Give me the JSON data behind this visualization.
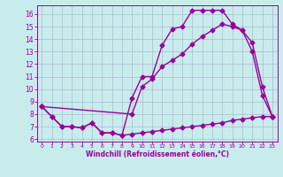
{
  "xlabel": "Windchill (Refroidissement éolien,°C)",
  "background_color": "#c8ecec",
  "line_color": "#990099",
  "grid_color": "#aaaacc",
  "xlim": [
    -0.5,
    23.5
  ],
  "ylim": [
    5.8,
    16.7
  ],
  "yticks": [
    6,
    7,
    8,
    9,
    10,
    11,
    12,
    13,
    14,
    15,
    16
  ],
  "xticks": [
    0,
    1,
    2,
    3,
    4,
    5,
    6,
    7,
    8,
    9,
    10,
    11,
    12,
    13,
    14,
    15,
    16,
    17,
    18,
    19,
    20,
    21,
    22,
    23
  ],
  "line1_x": [
    0,
    1,
    2,
    3,
    4,
    5,
    6,
    7,
    8,
    9,
    10,
    11,
    12,
    13,
    14,
    15,
    16,
    17,
    18,
    19,
    20,
    21,
    22,
    23
  ],
  "line1_y": [
    8.6,
    7.8,
    7.0,
    7.0,
    6.9,
    7.3,
    6.5,
    6.5,
    6.3,
    9.3,
    11.0,
    11.0,
    13.5,
    14.8,
    15.0,
    16.3,
    16.3,
    16.3,
    16.3,
    15.2,
    14.7,
    13.0,
    9.5,
    7.8
  ],
  "line2_x": [
    0,
    9,
    10,
    11,
    12,
    13,
    14,
    15,
    16,
    17,
    18,
    19,
    20,
    21,
    22,
    23
  ],
  "line2_y": [
    8.6,
    8.0,
    10.2,
    10.8,
    11.8,
    12.3,
    12.8,
    13.6,
    14.2,
    14.7,
    15.2,
    15.0,
    14.7,
    13.7,
    10.2,
    7.8
  ],
  "line3_x": [
    0,
    1,
    2,
    3,
    4,
    5,
    6,
    7,
    8,
    9,
    10,
    11,
    12,
    13,
    14,
    15,
    16,
    17,
    18,
    19,
    20,
    21,
    22,
    23
  ],
  "line3_y": [
    8.6,
    7.8,
    7.0,
    7.0,
    6.9,
    7.3,
    6.5,
    6.5,
    6.3,
    6.4,
    6.5,
    6.6,
    6.7,
    6.8,
    6.9,
    7.0,
    7.1,
    7.2,
    7.3,
    7.5,
    7.6,
    7.7,
    7.8,
    7.8
  ],
  "markersize": 2.5,
  "linewidth": 1.0
}
